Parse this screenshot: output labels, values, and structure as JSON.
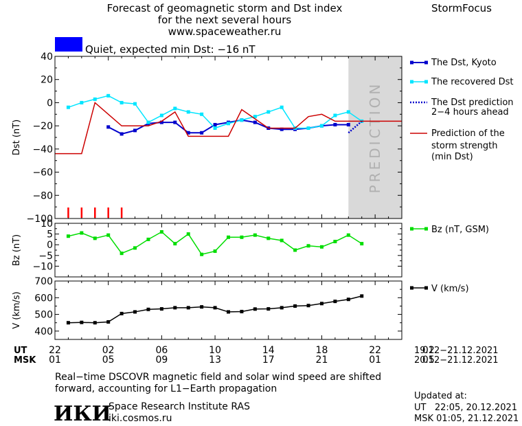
{
  "header": {
    "title_line1": "Forecast of geomagnetic storm and Dst index",
    "title_line2": "for the next several hours",
    "url": "www.spaceweather.ru",
    "brand": "StormFocus",
    "status_color": "#0000ff",
    "status_text": "Quiet, expected min Dst: −16 nT"
  },
  "prediction_label": "PREDICTION",
  "time_axis": {
    "ut_label": "UT",
    "msk_label": "MSK",
    "ut_ticks": [
      "22",
      "02",
      "06",
      "10",
      "14",
      "18",
      "22",
      "02"
    ],
    "msk_ticks": [
      "01",
      "05",
      "09",
      "13",
      "17",
      "21",
      "01",
      "05"
    ],
    "ut_range": "19.12−21.12.2021",
    "msk_range": "20.12−21.12.2021"
  },
  "legend": {
    "dst_kyoto": "The Dst, Kyoto",
    "dst_recovered": "The recovered Dst",
    "dst_prediction": [
      "The Dst prediction",
      "2−4 hours ahead"
    ],
    "storm_strength": [
      "Prediction of the",
      "storm strength",
      "(min Dst)"
    ],
    "bz": "Bz (nT, GSM)",
    "v": "V (km/s)"
  },
  "footer": {
    "note_line1": "Real−time DSCOVR magnetic field and solar wind speed are shifted",
    "note_line2": "forward, accounting for L1−Earth propagation",
    "logo": "ИКИ",
    "institute": "Space Research Institute RAS",
    "site": "iki.cosmos.ru",
    "updated_label": "Updated at:",
    "updated_ut": "UT   22:05, 20.12.2021",
    "updated_msk": "MSK 01:05, 21.12.2021"
  },
  "colors": {
    "dst_kyoto": "#0000cc",
    "dst_recovered": "#00e5ff",
    "dst_prediction": "#0000cc",
    "storm_strength": "#cc0000",
    "bz": "#00dd00",
    "v": "#000000",
    "prediction_band": "#d9d9d9",
    "ticks_red": "#ff0000"
  },
  "chart_data": [
    {
      "type": "line",
      "panel": "dst",
      "ylabel": "Dst (nT)",
      "ylim": [
        -100,
        40
      ],
      "yticks": [
        40,
        20,
        0,
        -20,
        -40,
        -60,
        -80,
        -100
      ],
      "xlim_hours_ut": [
        22,
        48
      ],
      "prediction_band_hours": [
        44,
        48
      ],
      "series": [
        {
          "name": "The Dst, Kyoto",
          "x": [
            26,
            27,
            28,
            29,
            30,
            31,
            32,
            33,
            34,
            35,
            36,
            37,
            38,
            39,
            40,
            41,
            42,
            43,
            44
          ],
          "y": [
            -21,
            -27,
            -24,
            -18,
            -17,
            -17,
            -26,
            -26,
            -19,
            -17,
            -15,
            -17,
            -22,
            -23,
            -23,
            -22,
            -20,
            -19,
            -19
          ]
        },
        {
          "name": "The recovered Dst",
          "x": [
            23,
            24,
            25,
            26,
            27,
            28,
            29,
            30,
            31,
            32,
            33,
            34,
            35,
            36,
            37,
            38,
            39,
            40,
            41,
            42,
            43,
            44,
            45
          ],
          "y": [
            -4,
            0,
            3,
            6,
            0,
            -1,
            -17,
            -11,
            -5,
            -8,
            -10,
            -22,
            -18,
            -15,
            -12,
            -8,
            -4,
            -22,
            -22,
            -20,
            -11,
            -8,
            -16
          ]
        },
        {
          "name": "The Dst prediction 2−4 hours ahead",
          "x": [
            44,
            45
          ],
          "y": [
            -26,
            -16
          ]
        },
        {
          "name": "Prediction of the storm strength (min Dst)",
          "x": [
            22,
            24,
            25,
            26,
            27,
            28,
            29,
            30,
            31,
            32,
            33,
            34,
            35,
            36,
            37,
            38,
            39,
            40,
            41,
            42,
            43,
            44,
            48
          ],
          "y": [
            -44,
            -44,
            0,
            -10,
            -20,
            -20,
            -20,
            -16,
            -8,
            -29,
            -29,
            -29,
            -29,
            -6,
            -14,
            -22,
            -22,
            -22,
            -12,
            -10,
            -16,
            -16,
            -16
          ]
        }
      ],
      "red_tick_hours": [
        23,
        24,
        25,
        26,
        27
      ]
    },
    {
      "type": "line",
      "panel": "bz",
      "ylabel": "Bz (nT)",
      "ylim": [
        -15,
        10
      ],
      "yticks": [
        10,
        5,
        0,
        -5,
        -10
      ],
      "series": [
        {
          "name": "Bz (nT, GSM)",
          "x": [
            23,
            24,
            25,
            26,
            27,
            28,
            29,
            30,
            31,
            32,
            33,
            34,
            35,
            36,
            37,
            38,
            39,
            40,
            41,
            42,
            43,
            44,
            45
          ],
          "y": [
            4,
            5.5,
            3,
            4.5,
            -4,
            -1.5,
            2.5,
            6,
            0.5,
            5,
            -4.5,
            -3,
            3.5,
            3.5,
            4.5,
            3,
            2,
            -2.5,
            -0.5,
            -1,
            1.5,
            4.5,
            0.5
          ]
        }
      ]
    },
    {
      "type": "line",
      "panel": "v",
      "ylabel": "V (km/s)",
      "ylim": [
        350,
        700
      ],
      "yticks": [
        700,
        600,
        500,
        400
      ],
      "series": [
        {
          "name": "V (km/s)",
          "x": [
            23,
            24,
            25,
            26,
            27,
            28,
            29,
            30,
            31,
            32,
            33,
            34,
            35,
            36,
            37,
            38,
            39,
            40,
            41,
            42,
            43,
            44,
            45
          ],
          "y": [
            450,
            452,
            450,
            455,
            505,
            515,
            530,
            533,
            540,
            540,
            545,
            540,
            515,
            517,
            532,
            533,
            540,
            550,
            553,
            565,
            578,
            590,
            610
          ]
        }
      ]
    }
  ]
}
